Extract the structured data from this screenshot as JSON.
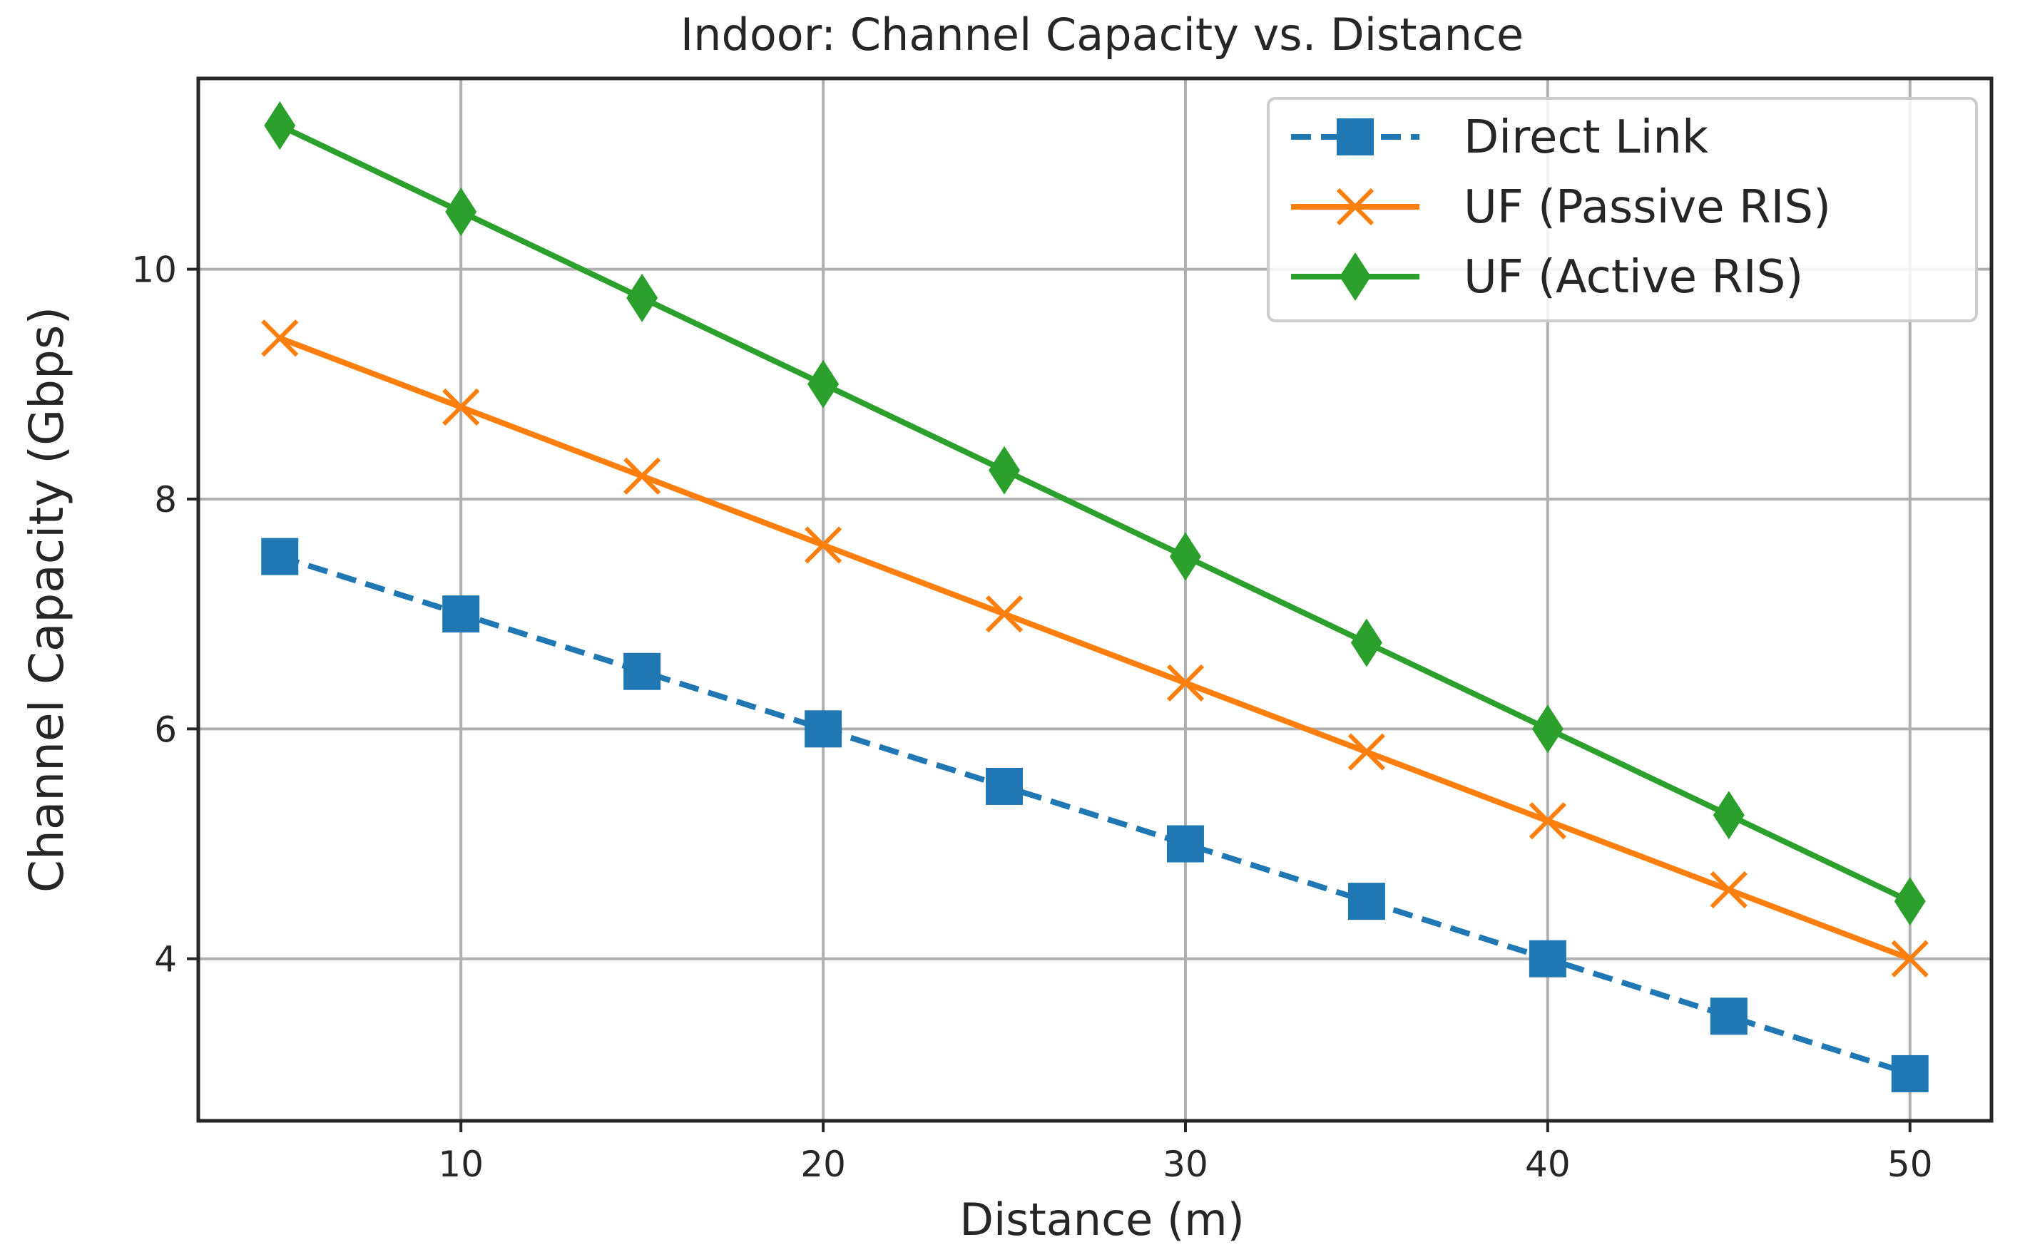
{
  "chart_data": {
    "type": "line",
    "title": "Indoor: Channel Capacity vs. Distance",
    "xlabel": "Distance (m)",
    "ylabel": "Channel Capacity (Gbps)",
    "x": [
      5,
      10,
      15,
      20,
      25,
      30,
      35,
      40,
      45,
      50
    ],
    "xlim": [
      2.75,
      52.25
    ],
    "ylim": [
      2.59,
      11.66
    ],
    "xticks": [
      10,
      20,
      30,
      40,
      50
    ],
    "xtick_labels": [
      "10",
      "20",
      "30",
      "40",
      "50"
    ],
    "yticks": [
      4,
      6,
      8,
      10
    ],
    "ytick_labels": [
      "4",
      "6",
      "8",
      "10"
    ],
    "grid": true,
    "legend_position": "top-right",
    "series": [
      {
        "name": "Direct Link",
        "color": "#1f77b4",
        "linestyle": "dashed",
        "marker": "square",
        "values": [
          7.5,
          7.0,
          6.5,
          6.0,
          5.5,
          5.0,
          4.5,
          4.0,
          3.5,
          3.0
        ]
      },
      {
        "name": "UF (Passive RIS)",
        "color": "#ff7f0e",
        "linestyle": "solid",
        "marker": "x",
        "values": [
          9.4,
          8.8,
          8.2,
          7.6,
          7.0,
          6.4,
          5.8,
          5.2,
          4.6,
          4.0
        ]
      },
      {
        "name": "UF (Active RIS)",
        "color": "#2ca02c",
        "linestyle": "solid",
        "marker": "diamond",
        "values": [
          11.25,
          10.5,
          9.75,
          9.0,
          8.25,
          7.5,
          6.75,
          6.0,
          5.25,
          4.5
        ]
      }
    ]
  }
}
